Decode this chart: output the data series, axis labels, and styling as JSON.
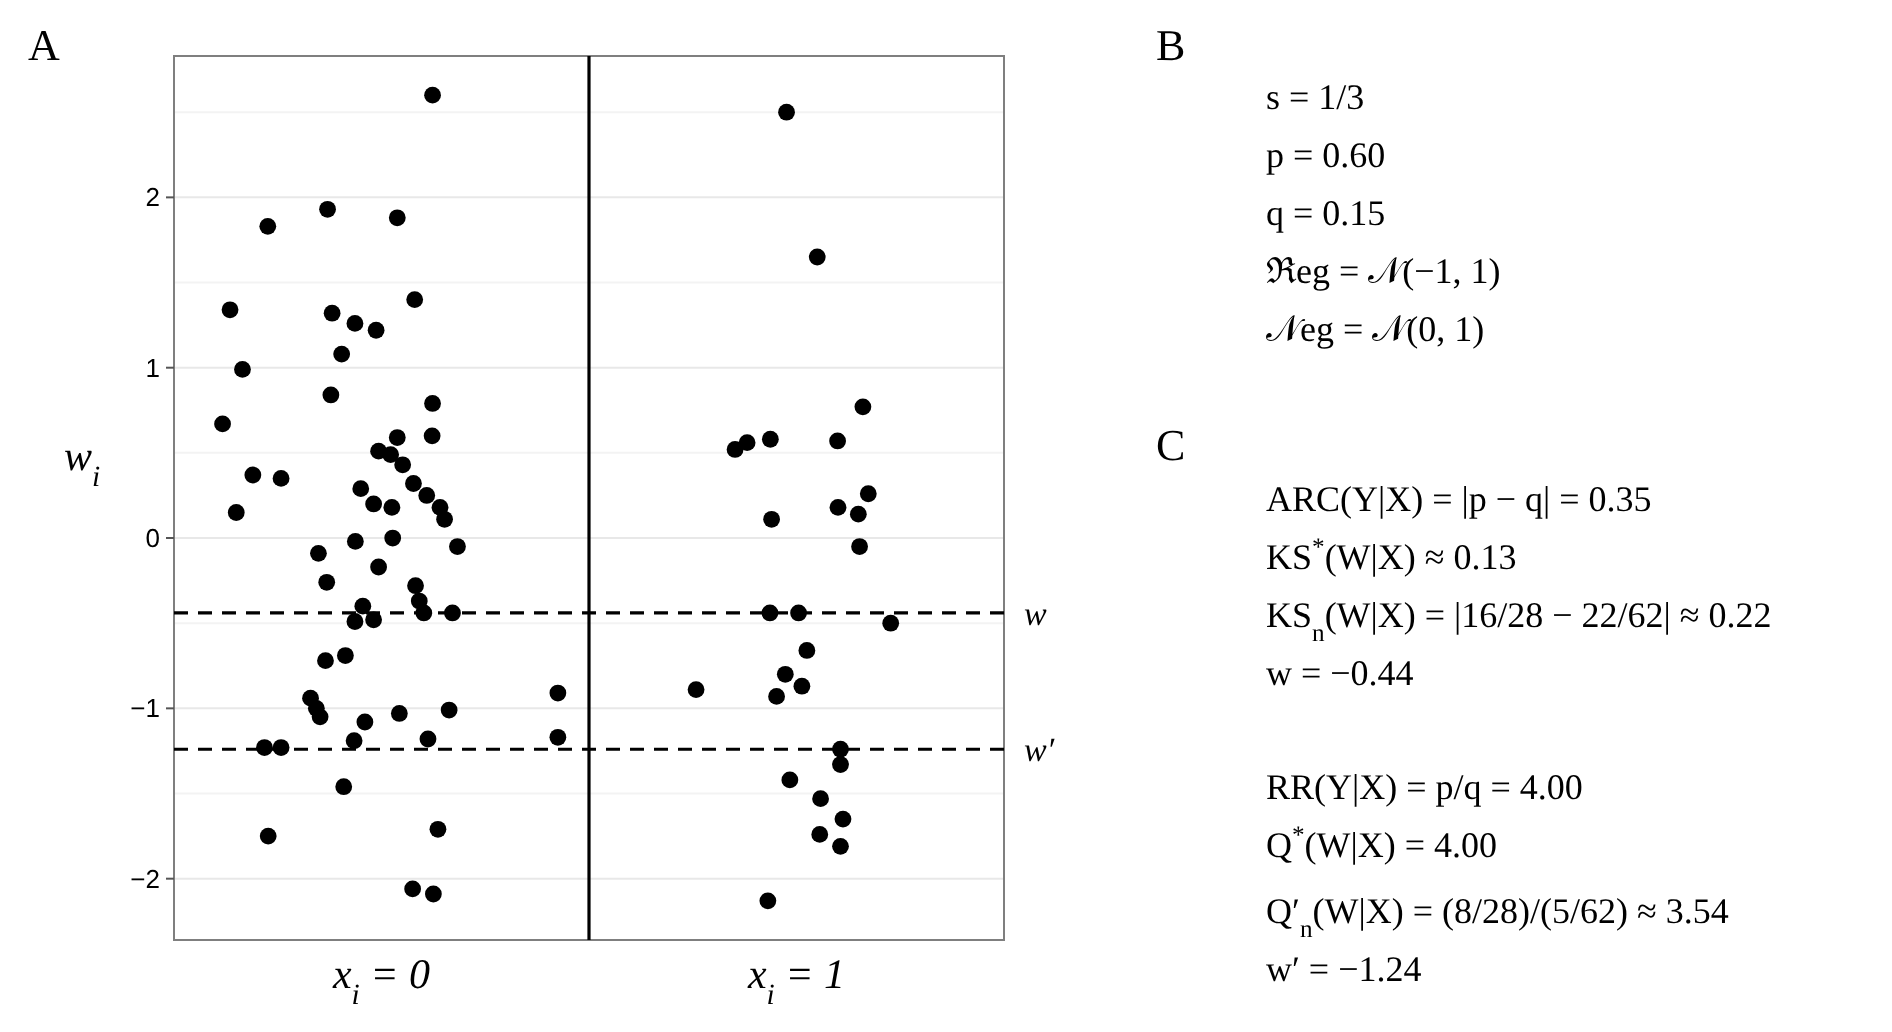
{
  "chart_data": [
    {
      "type": "scatter",
      "title": "A",
      "ylabel": "w$_{i}$",
      "marker": "circle",
      "grid": "y",
      "xlim": [
        -0.5,
        1.5
      ],
      "xticks": [
        {
          "value": 0,
          "label": "x$_{i}$ = 0"
        },
        {
          "value": 1,
          "label": "x$_{i}$ = 1"
        }
      ],
      "ylim": [
        -2.36,
        2.83
      ],
      "yticks": [
        -2,
        {
          "value": -1.5,
          "label": null
        },
        -1,
        {
          "value": -0.5,
          "label": null
        },
        0,
        {
          "value": 0.5,
          "label": null
        },
        1,
        {
          "value": 1.5,
          "label": null
        },
        2,
        {
          "value": 2.5,
          "label": null
        }
      ],
      "ref_lines": [
        {
          "axis": "x",
          "value": 0.5,
          "label": null,
          "color": "#000000",
          "line_style": "solid"
        },
        {
          "axis": "y",
          "value": -0.44,
          "label": "w",
          "color": "#000000",
          "line_style": "dashed"
        },
        {
          "axis": "y",
          "value": -1.24,
          "label": "w′",
          "color": "#000000",
          "line_style": "dashed"
        }
      ],
      "series": [
        {
          "color": "#000000",
          "x": [
            0.123,
            -0.13,
            -0.274,
            0.038,
            -0.365,
            -0.119,
            -0.064,
            -0.013,
            0.08,
            -0.096,
            -0.335,
            -0.122,
            0.123,
            -0.383,
            0.038,
            0.122,
            -0.007,
            0.022,
            0.051,
            -0.31,
            -0.242,
            0.077,
            -0.05,
            0.109,
            -0.019,
            0.025,
            -0.35,
            0.141,
            0.152,
            -0.152,
            -0.063,
            0.027,
            0.183,
            -0.132,
            -0.007,
            0.082,
            0.091,
            0.102,
            0.171,
            -0.045,
            -0.064,
            -0.019,
            -0.135,
            -0.087,
            -0.171,
            -0.157,
            -0.148,
            -0.04,
            0.043,
            0.163,
            -0.066,
            0.112,
            -0.282,
            -0.242,
            -0.091,
            -0.273,
            0.136,
            0.075,
            0.125,
            0.425,
            0.425,
            0.976,
            1.05,
            1.16,
            0.852,
            0.881,
            0.937,
            1.099,
            1.173,
            1.1,
            1.149,
            0.94,
            1.152,
            0.936,
            1.005,
            1.227,
            1.025,
            0.973,
            1.013,
            0.952,
            0.758,
            1.106,
            1.106,
            0.984,
            1.058,
            1.112,
            1.056,
            1.106,
            0.931
          ],
          "values": [
            2.6,
            1.93,
            1.83,
            1.88,
            1.34,
            1.32,
            1.26,
            1.22,
            1.4,
            1.08,
            0.99,
            0.84,
            0.79,
            0.67,
            0.59,
            0.6,
            0.51,
            0.49,
            0.43,
            0.37,
            0.35,
            0.32,
            0.29,
            0.25,
            0.2,
            0.18,
            0.15,
            0.18,
            0.11,
            -0.09,
            -0.02,
            0.0,
            -0.05,
            -0.26,
            -0.17,
            -0.28,
            -0.37,
            -0.44,
            -0.44,
            -0.4,
            -0.49,
            -0.48,
            -0.72,
            -0.69,
            -0.94,
            -1.0,
            -1.05,
            -1.08,
            -1.03,
            -1.01,
            -1.19,
            -1.18,
            -1.23,
            -1.23,
            -1.46,
            -1.75,
            -1.71,
            -2.06,
            -2.09,
            -0.91,
            -1.17,
            2.5,
            1.65,
            0.77,
            0.52,
            0.56,
            0.58,
            0.57,
            0.26,
            0.18,
            0.14,
            0.11,
            -0.05,
            -0.44,
            -0.44,
            -0.5,
            -0.66,
            -0.8,
            -0.87,
            -0.93,
            -0.89,
            -1.24,
            -1.33,
            -1.42,
            -1.53,
            -1.65,
            -1.74,
            -1.81,
            -2.13
          ]
        }
      ]
    },
    {
      "type": "other",
      "title": "B",
      "annotations": [
        "s = 1/3",
        "p = 0.60",
        "q = 0.15",
        "ℜeg = 𝒩(−1, 1)",
        "𝒩eg = 𝒩(0, 1)"
      ]
    },
    {
      "type": "other",
      "title": "C",
      "annotations": [
        "ARC(Y|X) = |p − q| = 0.35",
        "KS$^{*}$(W|X) ≈ 0.13",
        "KS$_{n}$(W|X) = |16/28 − 22/62| ≈ 0.22",
        "w = −0.44",
        "RR(Y|X) = p/q = 4.00",
        "Q$^{*}$(W|X) = 4.00",
        "Q′$_{n}$(W|X) = (8/28)/(5/62) ≈ 3.54",
        "w′ = −1.24"
      ]
    }
  ]
}
